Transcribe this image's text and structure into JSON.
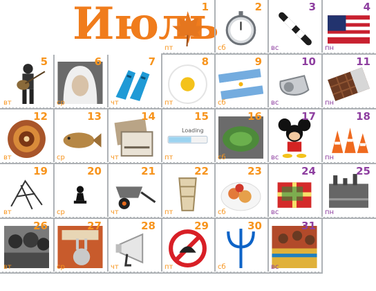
{
  "month_title": "Июль",
  "colors": {
    "weekday": "#F7941D",
    "weekend": "#8E3FA0",
    "title": "#F07C1C"
  },
  "days": [
    {
      "n": "1",
      "d": "пт",
      "icon": "maple-leaf-icon"
    },
    {
      "n": "2",
      "d": "сб",
      "icon": "stopwatch-icon"
    },
    {
      "n": "3",
      "d": "вс",
      "icon": "traffic-baton-icon"
    },
    {
      "n": "4",
      "d": "пн",
      "icon": "us-flag-icon"
    },
    {
      "n": "5",
      "d": "вт",
      "icon": "guitarist-photo-icon"
    },
    {
      "n": "6",
      "d": "ср",
      "icon": "headscarf-portrait-icon"
    },
    {
      "n": "7",
      "d": "чт",
      "icon": "swim-fins-icon"
    },
    {
      "n": "8",
      "d": "пт",
      "icon": "daisy-icon"
    },
    {
      "n": "9",
      "d": "сб",
      "icon": "argentina-flag-icon"
    },
    {
      "n": "10",
      "d": "вс",
      "icon": "whistle-icon"
    },
    {
      "n": "11",
      "d": "пн",
      "icon": "chocolate-bar-icon"
    },
    {
      "n": "12",
      "d": "вт",
      "icon": "aboriginal-art-icon"
    },
    {
      "n": "13",
      "d": "ср",
      "icon": "fish-icon"
    },
    {
      "n": "14",
      "d": "чт",
      "icon": "old-photos-icon"
    },
    {
      "n": "15",
      "d": "пт",
      "icon": "loading-bar-icon",
      "caption": "Loading"
    },
    {
      "n": "16",
      "d": "сб",
      "icon": "stadium-icon"
    },
    {
      "n": "17",
      "d": "вс",
      "icon": "mickey-mouse-icon"
    },
    {
      "n": "18",
      "d": "пн",
      "icon": "traffic-cones-icon"
    },
    {
      "n": "19",
      "d": "вт",
      "icon": "sketch-drawing-icon"
    },
    {
      "n": "20",
      "d": "ср",
      "icon": "chess-pawn-icon"
    },
    {
      "n": "21",
      "d": "чт",
      "icon": "wheelbarrow-icon"
    },
    {
      "n": "22",
      "d": "пт",
      "icon": "paper-cup-icon"
    },
    {
      "n": "23",
      "d": "сб",
      "icon": "food-plate-icon"
    },
    {
      "n": "24",
      "d": "вс",
      "icon": "gift-box-icon"
    },
    {
      "n": "25",
      "d": "пн",
      "icon": "industrial-photo-icon"
    },
    {
      "n": "26",
      "d": "вт",
      "icon": "crowd-photo-icon"
    },
    {
      "n": "27",
      "d": "ср",
      "icon": "bugs-bunny-poster-icon"
    },
    {
      "n": "28",
      "d": "чт",
      "icon": "megaphone-icon"
    },
    {
      "n": "29",
      "d": "пт",
      "icon": "no-sign-icon"
    },
    {
      "n": "30",
      "d": "сб",
      "icon": "trident-icon"
    },
    {
      "n": "31",
      "d": "вс",
      "icon": "dancers-photo-icon"
    }
  ]
}
